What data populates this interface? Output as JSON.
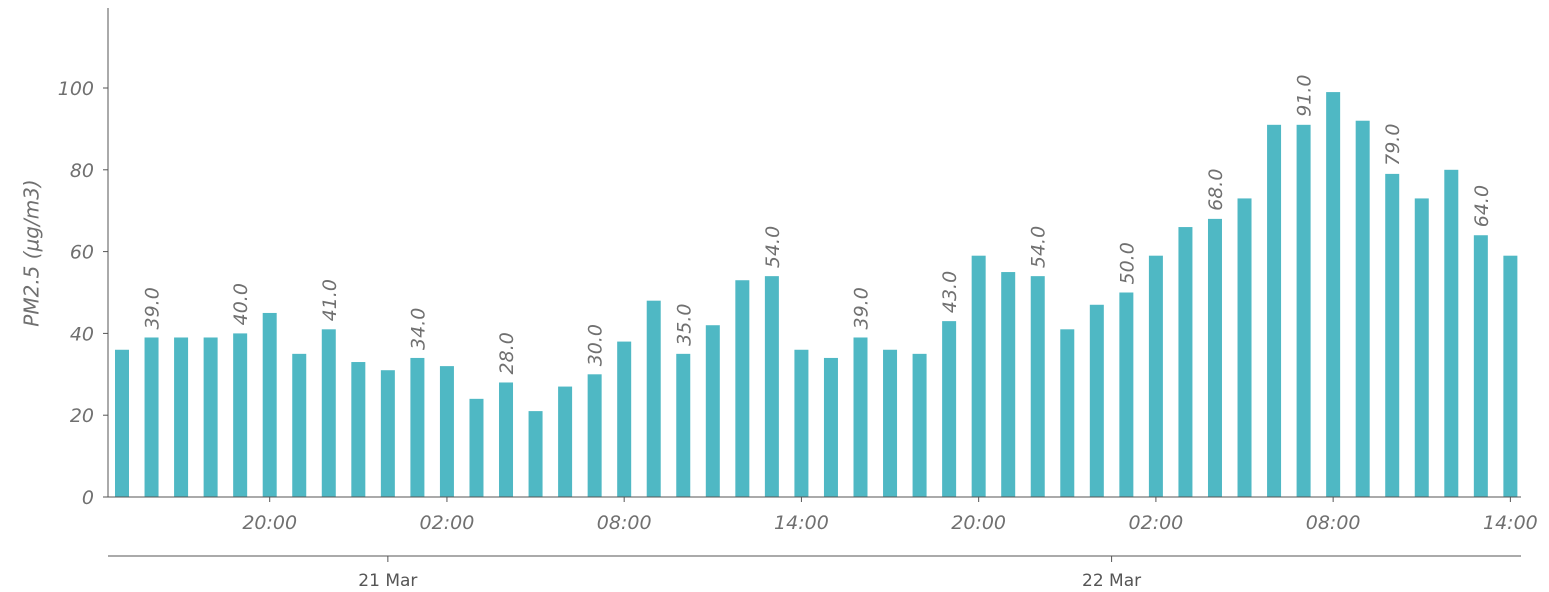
{
  "chart_data": {
    "type": "bar",
    "ylabel": "PM2.5 (µg/m3)",
    "xlabel": "",
    "title": "",
    "ylim": [
      0,
      118
    ],
    "yticks": [
      0,
      20,
      40,
      60,
      80,
      100
    ],
    "bar_color": "#4fb8c4",
    "series": [
      {
        "values": [
          36,
          39,
          39,
          39,
          40,
          45,
          35,
          41,
          33,
          31,
          34,
          32,
          24,
          28,
          21,
          27,
          30,
          38,
          48,
          35,
          42,
          53,
          54,
          36,
          34,
          39,
          36,
          35,
          43,
          59,
          55,
          54,
          41,
          47,
          50,
          59,
          66,
          68,
          73,
          91,
          91,
          99,
          92,
          79,
          73,
          80,
          64,
          59
        ]
      }
    ],
    "x_start": "21 Mar 15:00",
    "x_step_hours": 1,
    "data_labels": [
      {
        "index": 1,
        "text": "39.0"
      },
      {
        "index": 4,
        "text": "40.0"
      },
      {
        "index": 7,
        "text": "41.0"
      },
      {
        "index": 10,
        "text": "34.0"
      },
      {
        "index": 13,
        "text": "28.0"
      },
      {
        "index": 16,
        "text": "30.0"
      },
      {
        "index": 19,
        "text": "35.0"
      },
      {
        "index": 22,
        "text": "54.0"
      },
      {
        "index": 25,
        "text": "39.0"
      },
      {
        "index": 28,
        "text": "43.0"
      },
      {
        "index": 31,
        "text": "54.0"
      },
      {
        "index": 34,
        "text": "50.0"
      },
      {
        "index": 37,
        "text": "68.0"
      },
      {
        "index": 40,
        "text": "91.0"
      },
      {
        "index": 43,
        "text": "79.0"
      },
      {
        "index": 46,
        "text": "64.0"
      }
    ],
    "x_tick_labels": [
      {
        "index": 5,
        "text": "20:00"
      },
      {
        "index": 11,
        "text": "02:00"
      },
      {
        "index": 17,
        "text": "08:00"
      },
      {
        "index": 23,
        "text": "14:00"
      },
      {
        "index": 29,
        "text": "20:00"
      },
      {
        "index": 35,
        "text": "02:00"
      },
      {
        "index": 41,
        "text": "08:00"
      },
      {
        "index": 47,
        "text": "14:00"
      }
    ],
    "day_labels": [
      {
        "index": 9,
        "text": "21 Mar"
      },
      {
        "index": 33.5,
        "text": "22 Mar"
      }
    ]
  }
}
